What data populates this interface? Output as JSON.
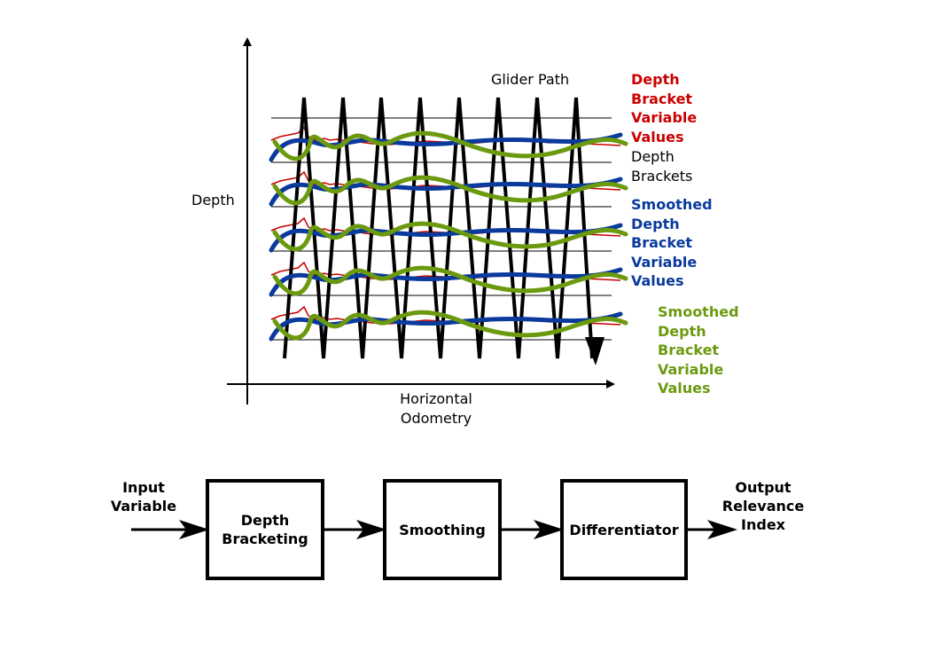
{
  "diagram": {
    "glider_path_label": "Glider Path",
    "y_axis_label": "Depth",
    "x_axis_label": [
      "Horizontal",
      "Odometry"
    ],
    "legend": {
      "depth_bracket_values": {
        "lines": [
          "Depth",
          "Bracket",
          "Variable",
          "Values"
        ],
        "color": "#cc0000"
      },
      "depth_brackets": {
        "lines": [
          "Depth",
          "Brackets"
        ],
        "color": "#000000"
      },
      "smoothed_blue": {
        "lines": [
          "Smoothed",
          "Depth",
          "Bracket",
          "Variable",
          "Values"
        ],
        "color": "#0a3a9c"
      },
      "smoothed_green": {
        "lines": [
          "Smoothed",
          "Depth",
          "Bracket",
          "Variable",
          "Values"
        ],
        "color": "#6b9a0f"
      }
    }
  },
  "pipeline": {
    "input_label": [
      "Input",
      "Variable"
    ],
    "steps": [
      {
        "lines": [
          "Depth",
          "Bracketing"
        ]
      },
      {
        "lines": [
          "Smoothing"
        ]
      },
      {
        "lines": [
          "Differentiator"
        ]
      }
    ],
    "output_label": [
      "Output",
      "Relevance",
      "Index"
    ]
  }
}
